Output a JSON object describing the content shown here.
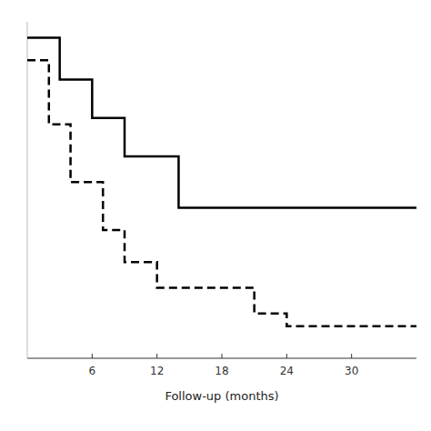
{
  "chart_data": {
    "type": "step",
    "series": [
      {
        "x": [
          0,
          3,
          3,
          6,
          6,
          9,
          9,
          14,
          14,
          36
        ],
        "values": [
          1.0,
          1.0,
          0.87,
          0.87,
          0.75,
          0.75,
          0.63,
          0.63,
          0.47,
          0.47
        ],
        "color": "#000000",
        "line_style": "solid"
      },
      {
        "x": [
          0,
          2,
          2,
          4,
          4,
          7,
          7,
          9,
          9,
          12,
          12,
          21,
          21,
          24,
          24,
          36
        ],
        "values": [
          0.93,
          0.93,
          0.73,
          0.73,
          0.55,
          0.55,
          0.4,
          0.4,
          0.3,
          0.3,
          0.22,
          0.22,
          0.14,
          0.14,
          0.1,
          0.1
        ],
        "color": "#000000",
        "line_style": "dashed"
      }
    ],
    "xlim": [
      0,
      36
    ],
    "ylim": [
      0.0,
      1.05
    ],
    "xticks": [
      6,
      12,
      18,
      24,
      30
    ],
    "yticks": [],
    "tick_labels": "x",
    "xlabel": "Follow-up (months)"
  }
}
